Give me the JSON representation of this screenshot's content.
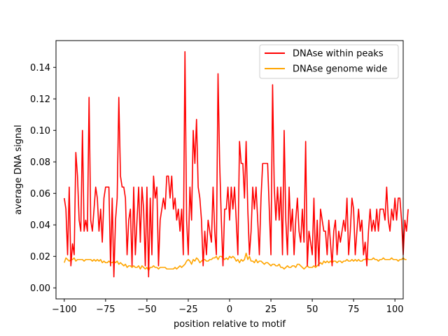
{
  "chart_data": {
    "type": "line",
    "title": "",
    "xlabel": "position relative to motif",
    "ylabel": "average DNA signal",
    "xlim": [
      -105,
      105
    ],
    "ylim": [
      -0.007,
      0.157
    ],
    "xticks": [
      -100,
      -75,
      -50,
      -25,
      0,
      25,
      50,
      75,
      100
    ],
    "yticks": [
      0.0,
      0.02,
      0.04,
      0.06,
      0.08,
      0.1,
      0.12,
      0.14
    ],
    "xtick_labels": [
      "−100",
      "−75",
      "−50",
      "−25",
      "0",
      "25",
      "50",
      "75",
      "100"
    ],
    "ytick_labels": [
      "0.00",
      "0.02",
      "0.04",
      "0.06",
      "0.08",
      "0.10",
      "0.12",
      "0.14"
    ],
    "grid": false,
    "legend_position": "top-right",
    "x_start": -100,
    "x_step": 1,
    "series": [
      {
        "name": "DNAse within peaks",
        "color": "#ff0000",
        "values": [
          0.057,
          0.05,
          0.021,
          0.064,
          0.014,
          0.028,
          0.021,
          0.086,
          0.071,
          0.043,
          0.036,
          0.1,
          0.036,
          0.043,
          0.036,
          0.121,
          0.043,
          0.036,
          0.05,
          0.064,
          0.057,
          0.036,
          0.05,
          0.029,
          0.057,
          0.064,
          0.064,
          0.064,
          0.014,
          0.057,
          0.007,
          0.043,
          0.057,
          0.121,
          0.071,
          0.064,
          0.064,
          0.057,
          0.021,
          0.043,
          0.05,
          0.014,
          0.064,
          0.021,
          0.043,
          0.064,
          0.029,
          0.064,
          0.05,
          0.014,
          0.064,
          0.007,
          0.057,
          0.021,
          0.071,
          0.057,
          0.064,
          0.014,
          0.043,
          0.05,
          0.057,
          0.05,
          0.071,
          0.071,
          0.057,
          0.071,
          0.05,
          0.057,
          0.043,
          0.05,
          0.036,
          0.05,
          0.021,
          0.15,
          0.043,
          0.021,
          0.064,
          0.043,
          0.1,
          0.079,
          0.107,
          0.064,
          0.057,
          0.043,
          0.014,
          0.036,
          0.021,
          0.043,
          0.036,
          0.029,
          0.064,
          0.036,
          0.021,
          0.136,
          0.079,
          0.043,
          0.014,
          0.05,
          0.05,
          0.064,
          0.043,
          0.064,
          0.05,
          0.064,
          0.043,
          0.021,
          0.093,
          0.079,
          0.079,
          0.057,
          0.093,
          0.05,
          0.021,
          0.036,
          0.064,
          0.05,
          0.064,
          0.043,
          0.021,
          0.057,
          0.079,
          0.079,
          0.079,
          0.079,
          0.05,
          0.021,
          0.129,
          0.064,
          0.043,
          0.064,
          0.043,
          0.064,
          0.021,
          0.1,
          0.043,
          0.021,
          0.064,
          0.036,
          0.05,
          0.021,
          0.043,
          0.057,
          0.036,
          0.029,
          0.05,
          0.029,
          0.093,
          0.014,
          0.036,
          0.029,
          0.021,
          0.057,
          0.014,
          0.043,
          0.014,
          0.05,
          0.043,
          0.036,
          0.036,
          0.021,
          0.043,
          0.029,
          0.014,
          0.036,
          0.043,
          0.021,
          0.036,
          0.029,
          0.036,
          0.043,
          0.036,
          0.057,
          0.021,
          0.036,
          0.057,
          0.05,
          0.021,
          0.036,
          0.05,
          0.036,
          0.043,
          0.021,
          0.029,
          0.014,
          0.036,
          0.05,
          0.036,
          0.043,
          0.036,
          0.05,
          0.036,
          0.05,
          0.05,
          0.05,
          0.043,
          0.064,
          0.043,
          0.036,
          0.05,
          0.043,
          0.057,
          0.043,
          0.057,
          0.057,
          0.043,
          0.021,
          0.043,
          0.036,
          0.05
        ],
        "values_note_removed": true
      },
      {
        "name": "DNAse genome wide",
        "color": "#ffa500",
        "values": [
          0.016,
          0.019,
          0.018,
          0.017,
          0.018,
          0.018,
          0.019,
          0.017,
          0.018,
          0.018,
          0.018,
          0.018,
          0.017,
          0.018,
          0.018,
          0.018,
          0.018,
          0.017,
          0.018,
          0.017,
          0.018,
          0.017,
          0.018,
          0.016,
          0.017,
          0.016,
          0.016,
          0.017,
          0.016,
          0.016,
          0.017,
          0.016,
          0.017,
          0.015,
          0.016,
          0.015,
          0.014,
          0.015,
          0.013,
          0.014,
          0.014,
          0.013,
          0.014,
          0.013,
          0.013,
          0.014,
          0.012,
          0.014,
          0.013,
          0.012,
          0.013,
          0.011,
          0.013,
          0.013,
          0.014,
          0.013,
          0.013,
          0.012,
          0.013,
          0.013,
          0.013,
          0.013,
          0.012,
          0.012,
          0.012,
          0.012,
          0.012,
          0.013,
          0.012,
          0.013,
          0.014,
          0.013,
          0.014,
          0.015,
          0.017,
          0.018,
          0.017,
          0.015,
          0.018,
          0.017,
          0.019,
          0.018,
          0.016,
          0.017,
          0.018,
          0.018,
          0.017,
          0.017,
          0.018,
          0.018,
          0.019,
          0.019,
          0.02,
          0.018,
          0.02,
          0.02,
          0.019,
          0.018,
          0.019,
          0.018,
          0.02,
          0.019,
          0.02,
          0.019,
          0.017,
          0.018,
          0.016,
          0.018,
          0.017,
          0.018,
          0.022,
          0.018,
          0.02,
          0.017,
          0.017,
          0.016,
          0.018,
          0.016,
          0.017,
          0.017,
          0.016,
          0.015,
          0.016,
          0.016,
          0.015,
          0.014,
          0.015,
          0.015,
          0.014,
          0.014,
          0.015,
          0.013,
          0.013,
          0.012,
          0.013,
          0.014,
          0.013,
          0.013,
          0.014,
          0.014,
          0.013,
          0.015,
          0.015,
          0.014,
          0.013,
          0.012,
          0.013,
          0.014,
          0.013,
          0.013,
          0.013,
          0.014,
          0.013,
          0.014,
          0.015,
          0.016,
          0.015,
          0.017,
          0.016,
          0.017,
          0.016,
          0.017,
          0.016,
          0.017,
          0.017,
          0.016,
          0.017,
          0.017,
          0.016,
          0.017,
          0.017,
          0.018,
          0.017,
          0.017,
          0.018,
          0.017,
          0.018,
          0.017,
          0.018,
          0.017,
          0.017,
          0.018,
          0.018,
          0.019,
          0.018,
          0.018,
          0.018,
          0.019,
          0.018,
          0.018,
          0.017,
          0.018,
          0.018,
          0.019,
          0.018,
          0.018,
          0.018,
          0.018,
          0.019,
          0.018,
          0.018,
          0.018,
          0.017,
          0.018,
          0.018,
          0.019,
          0.018,
          0.018
        ]
      }
    ]
  }
}
